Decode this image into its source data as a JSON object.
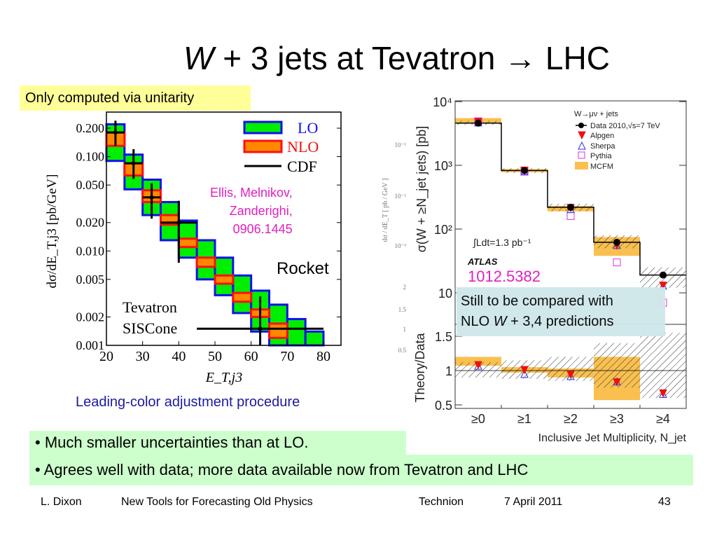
{
  "slide": {
    "title_w": "W",
    "title_rest": " + 3 jets at Tevatron ",
    "title_arrow": "→",
    "title_end": " LHC",
    "unitarity_note": "Only computed via unitarity",
    "left_caption": "Leading-color adjustment procedure",
    "rocket_label": "Rocket",
    "ellis_lines": [
      "Ellis, Melnikov,",
      "Zanderighi,",
      "0906.1445"
    ],
    "arxiv_right": "1012.5382",
    "still_line1": "Still to be compared with",
    "still_line2_a": "NLO ",
    "still_line2_w": "W",
    "still_line2_b": " + 3,4 predictions",
    "bullets": [
      "• Much smaller uncertainties than at LO.",
      "• Agrees well with data; more data available now from Tevatron and LHC"
    ],
    "footer": {
      "author": "L. Dixon",
      "talk": "New Tools for Forecasting Old Physics",
      "venue": "Technion",
      "date": "7 April 2011",
      "page": "43"
    }
  },
  "colors": {
    "lo_fill": "#00ee00",
    "lo_edge": "#1010ee",
    "nlo_fill": "#ff8800",
    "nlo_edge": "#ff1010",
    "mcfm": "#f9c050",
    "alpgen": "#ee1010",
    "sherpa": "#3030dd",
    "pythia": "#dd30dd",
    "highlight_yellow": "#ffff99",
    "bullet_green": "#ccffcc",
    "note_blue": "#cfe7ea"
  },
  "chart_data": [
    {
      "type": "bar",
      "xlabel": "E_T,j3",
      "ylabel": "dσ/dE_T,j3 [pb/GeV]",
      "ylog": true,
      "xlim": [
        20,
        80
      ],
      "ylim": [
        0.001,
        0.25
      ],
      "xticks": [
        "20",
        "30",
        "40",
        "50",
        "60",
        "70",
        "80"
      ],
      "yticks": [
        "0.200",
        "0.100",
        "0.050",
        "0.020",
        "0.010",
        "0.005",
        "0.002",
        "0.001"
      ],
      "legend": [
        "LO",
        "NLO",
        "CDF"
      ],
      "annotation": [
        "Tevatron",
        "SISCone"
      ],
      "bins": [
        [
          20,
          25
        ],
        [
          25,
          30
        ],
        [
          30,
          35
        ],
        [
          35,
          40
        ],
        [
          40,
          45
        ],
        [
          45,
          50
        ],
        [
          50,
          55
        ],
        [
          55,
          60
        ],
        [
          60,
          65
        ],
        [
          65,
          70
        ],
        [
          70,
          75
        ],
        [
          75,
          80
        ]
      ],
      "lo_band": [
        [
          0.09,
          0.22
        ],
        [
          0.045,
          0.105
        ],
        [
          0.024,
          0.057
        ],
        [
          0.013,
          0.033
        ],
        [
          0.0085,
          0.021
        ],
        [
          0.005,
          0.013
        ],
        [
          0.0034,
          0.0085
        ],
        [
          0.0022,
          0.0055
        ],
        [
          0.0014,
          0.0038
        ],
        [
          0.00095,
          0.0027
        ],
        [
          0.0009,
          0.0019
        ],
        [
          0.0009,
          0.0014
        ]
      ],
      "nlo_band": [
        [
          0.13,
          0.18
        ],
        [
          0.063,
          0.085
        ],
        [
          0.033,
          0.044
        ],
        [
          0.019,
          0.024
        ],
        [
          0.011,
          0.0135
        ],
        [
          0.0068,
          0.0085
        ],
        [
          0.0045,
          0.0055
        ],
        [
          0.0029,
          0.0036
        ],
        [
          0.002,
          0.0024
        ],
        [
          0.0012,
          0.0017
        ]
      ],
      "cdf": [
        {
          "x": 22.5,
          "y": 0.18,
          "xlo": 20,
          "xhi": 25,
          "ylo": 0.13,
          "yhi": 0.24
        },
        {
          "x": 27.5,
          "y": 0.085,
          "xlo": 25,
          "xhi": 30,
          "ylo": 0.058,
          "yhi": 0.12
        },
        {
          "x": 32.5,
          "y": 0.037,
          "xlo": 30,
          "xhi": 35,
          "ylo": 0.022,
          "yhi": 0.052
        },
        {
          "x": 40,
          "y": 0.02,
          "xlo": 35,
          "xhi": 45,
          "ylo": 0.0075,
          "yhi": 0.034
        },
        {
          "x": 62.5,
          "y": 0.0015,
          "xlo": 45,
          "xhi": 80,
          "ylo": 0.0006,
          "yhi": 0.0033
        }
      ]
    },
    {
      "type": "bar",
      "xlabel": "Inclusive Jet Multiplicity, N_jet",
      "ylabel": "σ(W + ≥N_jet jets) [pb]",
      "ratio_ylabel": "Theory/Data",
      "ylog": true,
      "ylim": [
        8,
        10000
      ],
      "ratio_ylim": [
        0.5,
        1.65
      ],
      "categories": [
        "≥0",
        "≥1",
        "≥2",
        "≥3",
        "≥4"
      ],
      "yticks": [
        "10⁴",
        "10³",
        "10²",
        "10"
      ],
      "ratio_yticks": [
        "1.5",
        "1",
        "0.5"
      ],
      "legend_title": "W→μν + jets",
      "legend": [
        "Data 2010,√s=7 TeV",
        "Alpgen",
        "Sherpa",
        "Pythia",
        "MCFM"
      ],
      "lumi": "∫Ldt=1.3 pb⁻¹",
      "experiment": "ATLAS",
      "background_faded_ticks": [
        "10⁻¹",
        "10⁻²",
        "10⁻³",
        "2",
        "1.5",
        "1",
        "0.5"
      ],
      "background_faded_ylabel": "dσ / dE_T  [ pb / GeV ]",
      "data": [
        4600,
        830,
        220,
        62,
        19
      ],
      "data_band": [
        [
          4300,
          5000
        ],
        [
          760,
          900
        ],
        [
          190,
          250
        ],
        [
          50,
          80
        ],
        [
          12,
          25
        ]
      ],
      "alpgen": [
        4800,
        830,
        215,
        55,
        13
      ],
      "sherpa": [
        4700,
        800,
        205,
        56,
        13
      ],
      "pythia": [
        4900,
        820,
        160,
        30,
        7
      ],
      "mcfm_band": [
        [
          4500,
          5500
        ],
        [
          780,
          870
        ],
        [
          190,
          230
        ],
        [
          38,
          75
        ]
      ],
      "ratio_data_band": [
        [
          0.9,
          1.12
        ],
        [
          0.88,
          1.15
        ],
        [
          0.85,
          1.2
        ],
        [
          0.75,
          1.4
        ],
        [
          0.6,
          1.55
        ]
      ],
      "ratio_mcfm_band": [
        [
          1.07,
          1.2
        ],
        [
          0.97,
          1.05
        ],
        [
          0.9,
          1.03
        ],
        [
          0.57,
          1.2
        ]
      ],
      "ratio_alpgen": [
        1.08,
        1.01,
        0.94,
        0.83,
        0.67
      ],
      "ratio_sherpa": [
        1.07,
        0.95,
        0.92,
        0.84,
        0.66
      ]
    }
  ]
}
